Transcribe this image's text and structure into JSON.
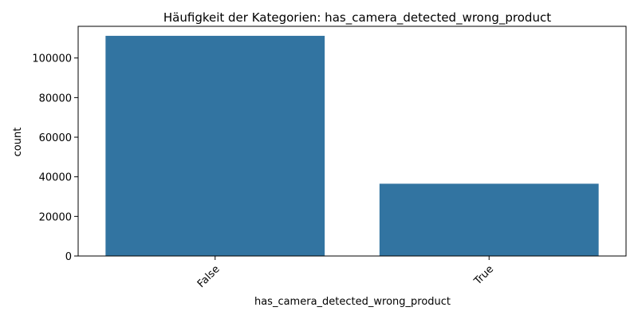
{
  "chart_data": {
    "type": "bar",
    "title": "Häufigkeit der Kategorien: has_camera_detected_wrong_product",
    "xlabel": "has_camera_detected_wrong_product",
    "ylabel": "count",
    "categories": [
      "False",
      "True"
    ],
    "values": [
      111200,
      36500
    ],
    "ylim": [
      0,
      116000
    ],
    "yticks": [
      0,
      20000,
      40000,
      60000,
      80000,
      100000
    ],
    "ytick_labels": [
      "0",
      "20000",
      "40000",
      "60000",
      "80000",
      "100000"
    ],
    "grid": false,
    "legend": "none",
    "colors": {
      "bar": "#3274a1",
      "axis": "#000000",
      "background": "#ffffff"
    }
  }
}
